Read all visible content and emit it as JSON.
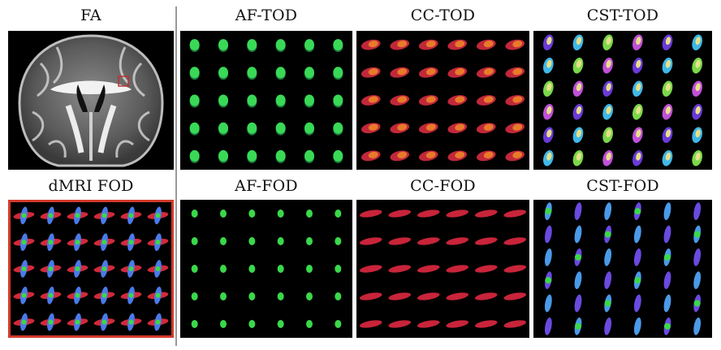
{
  "panels": {
    "fa": {
      "title": "FA"
    },
    "af_tod": {
      "title": "AF-TOD"
    },
    "cc_tod": {
      "title": "CC-TOD"
    },
    "cst_tod": {
      "title": "CST-TOD"
    },
    "dmri_fod": {
      "title": "dMRI FOD"
    },
    "af_fod": {
      "title": "AF-FOD"
    },
    "cc_fod": {
      "title": "CC-FOD"
    },
    "cst_fod": {
      "title": "CST-FOD"
    }
  },
  "colors": {
    "background": "#ffffff",
    "panel": "#000000",
    "divider": "#9a9a9a",
    "highlight_border": "#d23a2a",
    "fa_roi_box": "#c03030"
  }
}
